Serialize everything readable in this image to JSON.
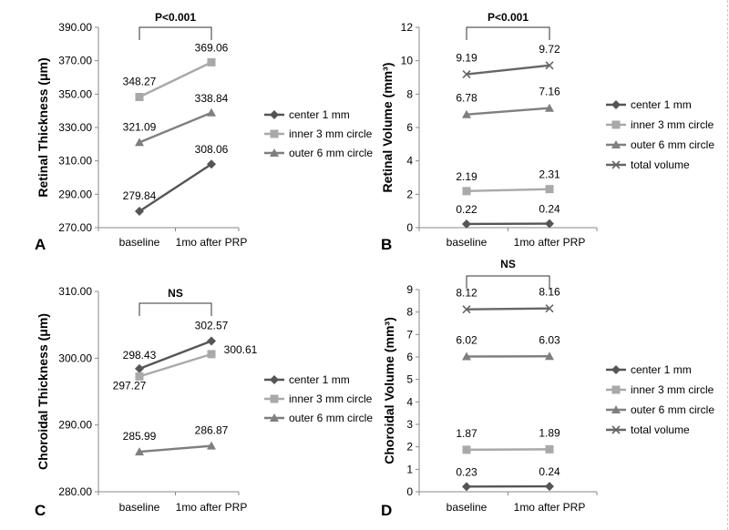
{
  "colors": {
    "center": "#555555",
    "inner": "#a9a9a9",
    "outer": "#7f7f7f",
    "total": "#666666",
    "axis": "#888888"
  },
  "chart_data": [
    {
      "panel_label": "A",
      "type": "line",
      "ylabel": "Retinal Thickness (μm)",
      "categories": [
        "baseline",
        "1mo after PRP"
      ],
      "ylim": [
        270,
        390
      ],
      "yticks": [
        "270.00",
        "290.00",
        "310.00",
        "330.00",
        "350.00",
        "370.00",
        "390.00"
      ],
      "significance": "P<0.001",
      "series": [
        {
          "name": "center 1 mm",
          "marker": "diamond",
          "color_key": "center",
          "values": [
            279.84,
            308.06
          ],
          "labels": [
            "279.84",
            "308.06"
          ]
        },
        {
          "name": "inner 3 mm circle",
          "marker": "square",
          "color_key": "inner",
          "values": [
            348.27,
            369.06
          ],
          "labels": [
            "348.27",
            "369.06"
          ]
        },
        {
          "name": "outer 6 mm circle",
          "marker": "triangle",
          "color_key": "outer",
          "values": [
            321.09,
            338.84
          ],
          "labels": [
            "321.09",
            "338.84"
          ]
        }
      ]
    },
    {
      "panel_label": "B",
      "type": "line",
      "ylabel": "Retinal Volume (mm³)",
      "categories": [
        "baseline",
        "1mo after PRP"
      ],
      "ylim": [
        0,
        12
      ],
      "yticks": [
        "0",
        "2",
        "4",
        "6",
        "8",
        "10",
        "12"
      ],
      "significance": "P<0.001",
      "series": [
        {
          "name": "center 1 mm",
          "marker": "diamond",
          "color_key": "center",
          "values": [
            0.22,
            0.24
          ],
          "labels": [
            "0.22",
            "0.24"
          ]
        },
        {
          "name": "inner 3 mm circle",
          "marker": "square",
          "color_key": "inner",
          "values": [
            2.19,
            2.31
          ],
          "labels": [
            "2.19",
            "2.31"
          ]
        },
        {
          "name": "outer 6 mm circle",
          "marker": "triangle",
          "color_key": "outer",
          "values": [
            6.78,
            7.16
          ],
          "labels": [
            "6.78",
            "7.16"
          ]
        },
        {
          "name": "total volume",
          "marker": "x",
          "color_key": "total",
          "values": [
            9.19,
            9.72
          ],
          "labels": [
            "9.19",
            "9.72"
          ]
        }
      ]
    },
    {
      "panel_label": "C",
      "type": "line",
      "ylabel": "Choroidal Thickness (μm)",
      "categories": [
        "baseline",
        "1mo after PRP"
      ],
      "ylim": [
        280,
        310
      ],
      "yticks": [
        "280.00",
        "290.00",
        "300.00",
        "310.00"
      ],
      "significance": "NS",
      "series": [
        {
          "name": "center 1 mm",
          "marker": "diamond",
          "color_key": "center",
          "values": [
            298.43,
            302.57
          ],
          "labels": [
            "298.43",
            "302.57"
          ]
        },
        {
          "name": "inner 3 mm circle",
          "marker": "square",
          "color_key": "inner",
          "values": [
            297.27,
            300.61
          ],
          "labels": [
            "297.27",
            "300.61"
          ]
        },
        {
          "name": "outer 6 mm circle",
          "marker": "triangle",
          "color_key": "outer",
          "values": [
            285.99,
            286.87
          ],
          "labels": [
            "285.99",
            "286.87"
          ]
        }
      ]
    },
    {
      "panel_label": "D",
      "type": "line",
      "ylabel": "Choroidal Volume (mm³)",
      "categories": [
        "baseline",
        "1mo after PRP"
      ],
      "ylim": [
        0,
        9
      ],
      "yticks": [
        "0",
        "1",
        "2",
        "3",
        "4",
        "5",
        "6",
        "7",
        "8",
        "9"
      ],
      "significance": "NS",
      "series": [
        {
          "name": "center 1 mm",
          "marker": "diamond",
          "color_key": "center",
          "values": [
            0.23,
            0.24
          ],
          "labels": [
            "0.23",
            "0.24"
          ]
        },
        {
          "name": "inner 3 mm circle",
          "marker": "square",
          "color_key": "inner",
          "values": [
            1.87,
            1.89
          ],
          "labels": [
            "1.87",
            "1.89"
          ]
        },
        {
          "name": "outer 6 mm circle",
          "marker": "triangle",
          "color_key": "outer",
          "values": [
            6.02,
            6.03
          ],
          "labels": [
            "6.02",
            "6.03"
          ]
        },
        {
          "name": "total volume",
          "marker": "x",
          "color_key": "total",
          "values": [
            8.12,
            8.16
          ],
          "labels": [
            "8.12",
            "8.16"
          ]
        }
      ]
    }
  ]
}
